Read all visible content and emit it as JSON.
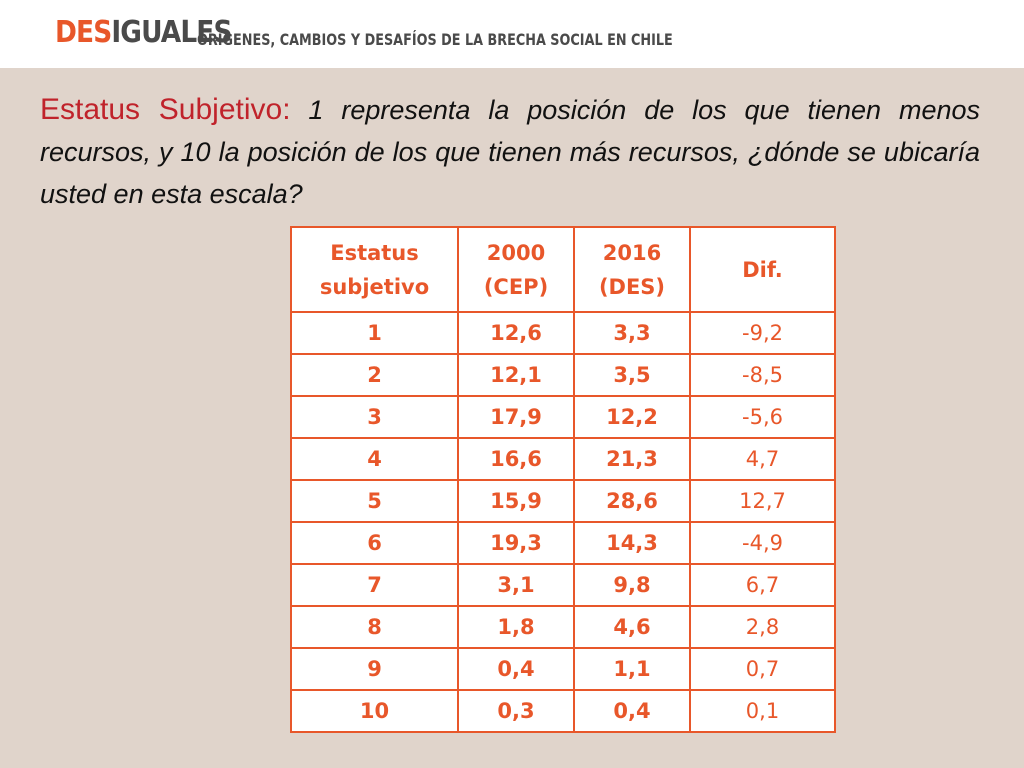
{
  "header": {
    "logo_part1": "DES",
    "logo_part2": "IGUALES",
    "subtitle": "ORÍGENES, CAMBIOS Y DESAFÍOS DE LA BRECHA SOCIAL EN CHILE"
  },
  "intro": {
    "lead": "Estatus Subjetivo:",
    "text": " 1 representa la posición de los que tienen menos recursos, y 10 la posición de los que tienen más recursos, ¿dónde se ubicaría usted en esta escala?"
  },
  "colors": {
    "accent": "#e8572a",
    "lead": "#c0232b",
    "panel": "#e0d4cb"
  },
  "table": {
    "headers": [
      [
        "Estatus",
        "subjetivo"
      ],
      [
        "2000",
        "(CEP)"
      ],
      [
        "2016",
        "(DES)"
      ],
      [
        "Dif."
      ]
    ],
    "rows": [
      [
        "1",
        "12,6",
        "3,3",
        "-9,2"
      ],
      [
        "2",
        "12,1",
        "3,5",
        "-8,5"
      ],
      [
        "3",
        "17,9",
        "12,2",
        "-5,6"
      ],
      [
        "4",
        "16,6",
        "21,3",
        "4,7"
      ],
      [
        "5",
        "15,9",
        "28,6",
        "12,7"
      ],
      [
        "6",
        "19,3",
        "14,3",
        "-4,9"
      ],
      [
        "7",
        "3,1",
        "9,8",
        "6,7"
      ],
      [
        "8",
        "1,8",
        "4,6",
        "2,8"
      ],
      [
        "9",
        "0,4",
        "1,1",
        "0,7"
      ],
      [
        "10",
        "0,3",
        "0,4",
        "0,1"
      ]
    ]
  }
}
